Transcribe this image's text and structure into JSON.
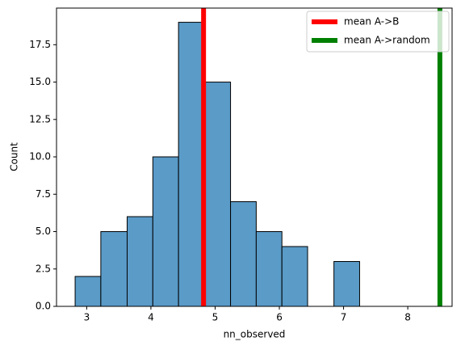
{
  "chart_data": {
    "type": "histogram",
    "xlabel": "nn_observed",
    "ylabel": "Count",
    "bins": [
      2.82,
      3.22,
      3.63,
      4.03,
      4.43,
      4.83,
      5.24,
      5.64,
      6.04,
      6.44,
      6.85,
      7.25
    ],
    "values": [
      2,
      5,
      6,
      10,
      19,
      15,
      7,
      5,
      4,
      0,
      3
    ],
    "color": "#5a9bc8",
    "xlim": [
      2.53,
      8.69
    ],
    "ylim": [
      0,
      19.95
    ],
    "xticks": [
      3,
      4,
      5,
      6,
      7,
      8
    ],
    "yticks": [
      {
        "value": 0,
        "label": "0.0"
      },
      2.5,
      {
        "value": 5,
        "label": "5.0"
      },
      7.5,
      {
        "value": 10,
        "label": "10.0"
      },
      12.5,
      {
        "value": 15,
        "label": "15.0"
      },
      17.5
    ],
    "vlines": [
      {
        "name": "mean A->B",
        "color": "#ff0000",
        "x": 4.82
      },
      {
        "name": "mean A->random",
        "color": "#008000",
        "x": 8.5
      }
    ],
    "legend": "upper right"
  }
}
